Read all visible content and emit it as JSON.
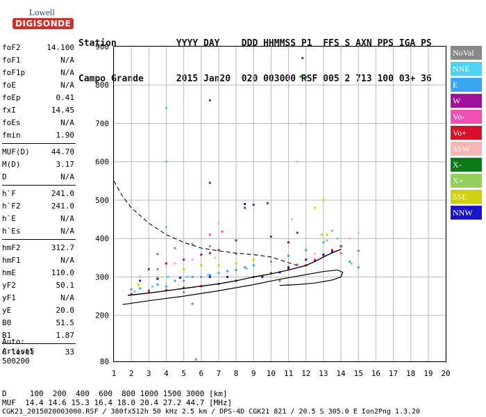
{
  "logo": {
    "line1": "Lowell",
    "line2": "DIGISONDE"
  },
  "header": {
    "row1": "Station           YYYY DAY    DDD HHMMSS P1  FFS S AXN PPS IGA PS",
    "row2": "Campo Grande      2015 Jan20  020 003000 RSF 005 2 713 100 03+ 36"
  },
  "params": [
    {
      "k": "foF2",
      "v": "14.100"
    },
    {
      "k": "foF1",
      "v": "N/A"
    },
    {
      "k": "foF1p",
      "v": "N/A"
    },
    {
      "k": "foE",
      "v": "N/A"
    },
    {
      "k": "foEp",
      "v": "0.41"
    },
    {
      "k": "fxI",
      "v": "14.45"
    },
    {
      "k": "foEs",
      "v": "N/A"
    },
    {
      "k": "fmin",
      "v": "1.90"
    },
    {
      "k": "MUF(D)",
      "v": "44.70"
    },
    {
      "k": "M(D)",
      "v": "3.17"
    },
    {
      "k": "D",
      "v": "N/A"
    },
    {
      "k": "h`F",
      "v": "241.0"
    },
    {
      "k": "h`F2",
      "v": "241.0"
    },
    {
      "k": "h`E",
      "v": "N/A"
    },
    {
      "k": "h`Es",
      "v": "N/A"
    },
    {
      "k": "hmF2",
      "v": "312.7"
    },
    {
      "k": "hmF1",
      "v": "N/A"
    },
    {
      "k": "hmE",
      "v": "110.0"
    },
    {
      "k": "yF2",
      "v": "50.1"
    },
    {
      "k": "yF1",
      "v": "N/A"
    },
    {
      "k": "yE",
      "v": "20.0"
    },
    {
      "k": "B0",
      "v": "51.5"
    },
    {
      "k": "B1",
      "v": "1.87"
    },
    {
      "k": "C-level",
      "v": "33"
    }
  ],
  "auto": {
    "line1": "Auto:",
    "line2": "Artist5",
    "line3": "500200"
  },
  "legend": [
    {
      "label": "NoVal",
      "color": "#888888"
    },
    {
      "label": "NNE",
      "color": "#4fd2ef"
    },
    {
      "label": "E",
      "color": "#3aa4f0"
    },
    {
      "label": "W",
      "color": "#a0109a"
    },
    {
      "label": "Vo-",
      "color": "#ef4fb2"
    },
    {
      "label": "Vo+",
      "color": "#d8102a"
    },
    {
      "label": "SSW",
      "color": "#f7b4b4"
    },
    {
      "label": "X-",
      "color": "#0b7a14"
    },
    {
      "label": "X+",
      "color": "#92cf58"
    },
    {
      "label": "SSE",
      "color": "#cfcf10"
    },
    {
      "label": "NNW",
      "color": "#1a14c2"
    }
  ],
  "footer": {
    "d_row": "D     100  200  400  600  800 1000 1500 3000 [km]",
    "muf_row": "MUF  14.4 14.6 15.3 16.4 18.0 20.4 27.2 44.7 [MHz]",
    "file_row": "CGK21_2015020003000.RSF / 380fx512h 50 kHz 2.5 km / DPS-4D CGK21 821 / 20.5 S 305.0 E Ion2Png 1.3.20"
  },
  "chart_data": {
    "type": "scatter",
    "x_ticks": [
      "1",
      "2",
      "3",
      "4",
      "5",
      "6",
      "7",
      "8",
      "9",
      "10",
      "11",
      "12",
      "13",
      "14",
      "15",
      "16",
      "17",
      "18",
      "19",
      "20"
    ],
    "y_ticks": [
      "80",
      "200",
      "300",
      "400",
      "500",
      "600",
      "700",
      "800",
      "900"
    ],
    "xlim": [
      1,
      20
    ],
    "ylim": [
      80,
      900
    ],
    "grid": true,
    "series": [
      {
        "name": "E",
        "color": "#3aa4f0",
        "points": [
          [
            2,
            255
          ],
          [
            2.5,
            270
          ],
          [
            3,
            265
          ],
          [
            3.5,
            280
          ],
          [
            4,
            275
          ],
          [
            4.5,
            290
          ],
          [
            5,
            290
          ],
          [
            5.5,
            300
          ],
          [
            6,
            300
          ],
          [
            6.5,
            305
          ],
          [
            7,
            310
          ],
          [
            7.5,
            315
          ],
          [
            8,
            318
          ],
          [
            8.5,
            325
          ],
          [
            9,
            330
          ],
          [
            10,
            340
          ],
          [
            11,
            355
          ],
          [
            12,
            370
          ],
          [
            13,
            390
          ],
          [
            14,
            380
          ],
          [
            14.5,
            340
          ],
          [
            15,
            325
          ]
        ]
      },
      {
        "name": "NNE",
        "color": "#4fd2ef",
        "points": [
          [
            2.2,
            262
          ],
          [
            3.2,
            275
          ],
          [
            4,
            430
          ],
          [
            4,
            600
          ],
          [
            4,
            740
          ],
          [
            4.1,
            300
          ],
          [
            5.2,
            300
          ],
          [
            6.4,
            305
          ],
          [
            8.6,
            322
          ],
          [
            13.5,
            420
          ],
          [
            14.6,
            335
          ]
        ]
      },
      {
        "name": "W",
        "color": "#a0109a",
        "points": [
          [
            3,
            320
          ],
          [
            4,
            335
          ],
          [
            5,
            345
          ],
          [
            6,
            358
          ],
          [
            6.5,
            362
          ],
          [
            6.5,
            545
          ],
          [
            6.5,
            760
          ],
          [
            7,
            370
          ],
          [
            8,
            395
          ],
          [
            8.5,
            480
          ],
          [
            9,
            488
          ],
          [
            9.8,
            492
          ],
          [
            10,
            405
          ],
          [
            11,
            390
          ],
          [
            11.5,
            415
          ]
        ]
      },
      {
        "name": "Vo-",
        "color": "#ef4fb2",
        "points": [
          [
            3.5,
            360
          ],
          [
            4.5,
            375
          ],
          [
            5.5,
            385
          ],
          [
            6.5,
            410
          ],
          [
            7.2,
            418
          ],
          [
            11.5,
            332
          ],
          [
            12.5,
            345
          ],
          [
            13,
            355
          ],
          [
            14,
            362
          ],
          [
            15,
            368
          ]
        ]
      },
      {
        "name": "Vo+",
        "color": "#d8102a",
        "points": [
          [
            2,
            255
          ],
          [
            3,
            262
          ],
          [
            4,
            266
          ],
          [
            5,
            272
          ],
          [
            6,
            276
          ],
          [
            7,
            282
          ],
          [
            8,
            290
          ],
          [
            9,
            300
          ],
          [
            10,
            310
          ],
          [
            11,
            320
          ],
          [
            12,
            330
          ],
          [
            12.5,
            342
          ],
          [
            13,
            358
          ],
          [
            13.5,
            370
          ],
          [
            14,
            380
          ]
        ]
      },
      {
        "name": "SSW",
        "color": "#f7b4b4",
        "points": [
          [
            2.5,
            300
          ],
          [
            3.5,
            320
          ],
          [
            4.5,
            335
          ],
          [
            5.5,
            345
          ],
          [
            6.8,
            350
          ],
          [
            7,
            440
          ],
          [
            11,
            280
          ],
          [
            11.2,
            450
          ],
          [
            11.5,
            600
          ],
          [
            11.7,
            700
          ],
          [
            12.5,
            360
          ],
          [
            14.5,
            400
          ],
          [
            15,
            415
          ]
        ]
      },
      {
        "name": "X-",
        "color": "#0b7a14",
        "points": [
          [
            11.7,
            822
          ],
          [
            11.8,
            870
          ],
          [
            12,
            820
          ]
        ]
      },
      {
        "name": "X+",
        "color": "#92cf58",
        "points": [
          [
            12.9,
            410
          ],
          [
            13.2,
            395
          ],
          [
            13.8,
            400
          ]
        ]
      },
      {
        "name": "SSE",
        "color": "#cfcf10",
        "points": [
          [
            2.4,
            280
          ],
          [
            3.5,
            300
          ],
          [
            5,
            320
          ],
          [
            6,
            330
          ],
          [
            7,
            330
          ],
          [
            8,
            335
          ],
          [
            9,
            345
          ],
          [
            12.5,
            480
          ],
          [
            13,
            500
          ],
          [
            13.2,
            410
          ]
        ]
      },
      {
        "name": "NNW",
        "color": "#1a14c2",
        "points": [
          [
            2.5,
            290
          ],
          [
            3.5,
            295
          ],
          [
            4.8,
            298
          ],
          [
            6.5,
            300
          ],
          [
            7.5,
            300
          ],
          [
            8.5,
            490
          ],
          [
            9.5,
            300
          ],
          [
            10.5,
            312
          ],
          [
            11,
            325
          ],
          [
            12,
            345
          ],
          [
            13,
            358
          ],
          [
            13.5,
            365
          ]
        ]
      },
      {
        "name": "NoVal",
        "color": "#888888",
        "points": [
          [
            2,
            268
          ],
          [
            3.5,
            320
          ],
          [
            5,
            260
          ],
          [
            5.5,
            230
          ],
          [
            5.7,
            85
          ],
          [
            6.5,
            380
          ],
          [
            8,
            360
          ],
          [
            10.5,
            290
          ]
        ]
      }
    ],
    "curves": {
      "profile": [
        [
          1.5,
          228
        ],
        [
          3,
          238
        ],
        [
          5,
          250
        ],
        [
          7,
          264
        ],
        [
          9,
          280
        ],
        [
          10.5,
          294
        ],
        [
          12,
          306
        ],
        [
          13,
          314
        ],
        [
          13.8,
          318
        ],
        [
          14.1,
          312
        ],
        [
          14,
          300
        ],
        [
          13.5,
          292
        ],
        [
          12.5,
          284
        ],
        [
          11.5,
          280
        ],
        [
          10.5,
          278
        ]
      ],
      "virtual": [
        [
          1.8,
          252
        ],
        [
          3,
          258
        ],
        [
          4,
          264
        ],
        [
          5,
          270
        ],
        [
          6,
          276
        ],
        [
          7,
          282
        ],
        [
          8,
          290
        ],
        [
          9,
          300
        ],
        [
          10,
          308
        ],
        [
          11,
          318
        ],
        [
          12,
          330
        ],
        [
          12.5,
          340
        ],
        [
          13,
          352
        ],
        [
          13.5,
          363
        ],
        [
          14,
          372
        ]
      ],
      "muf_dashed": [
        [
          1,
          550
        ],
        [
          1.5,
          510
        ],
        [
          2,
          480
        ],
        [
          3,
          440
        ],
        [
          4,
          410
        ],
        [
          5,
          390
        ],
        [
          6,
          375
        ],
        [
          7,
          368
        ],
        [
          8,
          362
        ],
        [
          9,
          358
        ],
        [
          10,
          352
        ],
        [
          10.8,
          340
        ],
        [
          11.5,
          330
        ]
      ]
    }
  }
}
